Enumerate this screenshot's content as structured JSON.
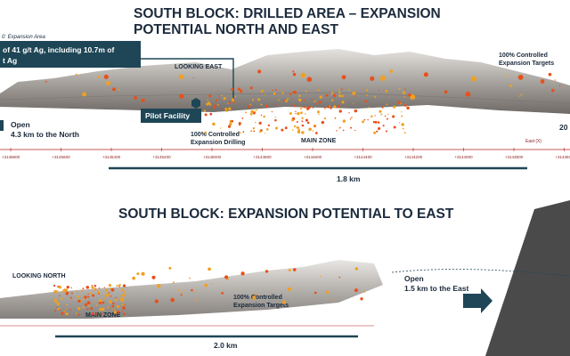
{
  "top_panel": {
    "title": [
      "SOUTH BLOCK: DRILLED AREA – EXPANSION",
      "POTENTIAL NORTH AND EAST"
    ],
    "legend_fragment": "0: Expansion Area",
    "callout": [
      "of 41 g/t Ag, including 10.7m of",
      "t Ag"
    ],
    "view_label": "LOOKING EAST",
    "targets_label": [
      "100% Controlled",
      "Expansion Targets"
    ],
    "pilot_label": "Pilot Facility",
    "open_label": [
      "Open",
      "4.3 km to the North"
    ],
    "drilling_label": [
      "100% Controlled",
      "Expansion Drilling"
    ],
    "zone_label": "MAIN ZONE",
    "right_fragment": "20",
    "axis_name": "East (X)",
    "axis_labels": [
      "+3145800",
      "+3145600",
      "+3145400",
      "+3145200",
      "+3145000",
      "+3144800",
      "+3144600",
      "+3144400",
      "+3144200",
      "+3144000",
      "+3143800",
      "+3143600"
    ],
    "scale_label": "1.8 km"
  },
  "bottom_panel": {
    "title": "SOUTH BLOCK: EXPANSION POTENTIAL TO EAST",
    "view_label": "LOOKING NORTH",
    "zone_label": "MAIN ZONE",
    "targets_label": [
      "100% Controlled",
      "Expansion Targets"
    ],
    "open_label": [
      "Open",
      "1.5 km to the East"
    ],
    "scale_label": "2.0 km"
  }
}
